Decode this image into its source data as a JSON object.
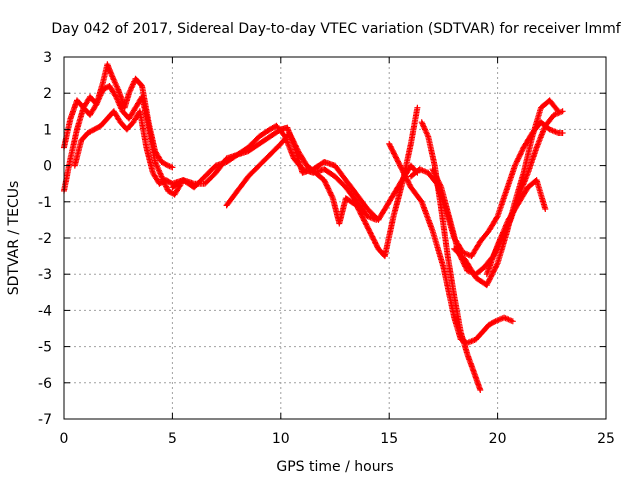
{
  "chart_data": {
    "type": "scatter",
    "title": "Day 042 of 2017, Sidereal Day-to-day VTEC variation (SDTVAR) for receiver lmmf",
    "xlabel": "GPS time / hours",
    "ylabel": "SDTVAR / TECUs",
    "xlim": [
      0,
      25
    ],
    "ylim": [
      -7,
      3
    ],
    "xticks": [
      0,
      5,
      10,
      15,
      20,
      25
    ],
    "yticks": [
      -7,
      -6,
      -5,
      -4,
      -3,
      -2,
      -1,
      0,
      1,
      2,
      3
    ],
    "grid": true,
    "legend": "none",
    "marker": "+",
    "color": "#ff0000",
    "series": [
      {
        "x": [
          0.0,
          0.3,
          0.6,
          0.9,
          1.2,
          1.5,
          1.8,
          2.0,
          2.2,
          2.5,
          2.8,
          3.0,
          3.3,
          3.6,
          3.9,
          4.2,
          4.5,
          4.8,
          5.0
        ],
        "y": [
          0.5,
          1.3,
          1.8,
          1.6,
          1.4,
          1.7,
          2.3,
          2.8,
          2.5,
          2.1,
          1.6,
          2.0,
          2.4,
          2.2,
          1.2,
          0.4,
          0.1,
          0.0,
          -0.05
        ]
      },
      {
        "x": [
          0.0,
          0.3,
          0.6,
          0.9,
          1.2,
          1.5,
          1.8,
          2.1,
          2.4,
          2.7,
          3.0,
          3.3,
          3.6,
          3.9,
          4.2,
          4.5,
          4.8,
          5.1,
          5.4
        ],
        "y": [
          -0.7,
          0.2,
          1.0,
          1.6,
          1.9,
          1.7,
          2.1,
          2.2,
          1.9,
          1.5,
          1.3,
          1.6,
          1.9,
          1.1,
          0.1,
          -0.3,
          -0.7,
          -0.8,
          -0.5
        ]
      },
      {
        "x": [
          0.5,
          0.8,
          1.1,
          1.4,
          1.7,
          2.0,
          2.3,
          2.6,
          2.9,
          3.2,
          3.5,
          3.8,
          4.1,
          4.4,
          4.7,
          5.0,
          5.5,
          6.0,
          6.5,
          7.0,
          7.5,
          8.0,
          8.5,
          9.0,
          9.5,
          9.8,
          10.2,
          10.6,
          11.0,
          11.5,
          12.0,
          12.5,
          13.0,
          13.5,
          14.0,
          14.4
        ],
        "y": [
          0.0,
          0.7,
          0.9,
          1.0,
          1.1,
          1.3,
          1.5,
          1.2,
          1.0,
          1.2,
          1.5,
          0.5,
          -0.2,
          -0.5,
          -0.4,
          -0.5,
          -0.4,
          -0.6,
          -0.3,
          0.0,
          0.1,
          0.3,
          0.5,
          0.8,
          1.0,
          1.1,
          0.8,
          0.2,
          -0.1,
          -0.2,
          -0.1,
          -0.3,
          -0.6,
          -1.0,
          -1.4,
          -1.5
        ]
      },
      {
        "x": [
          5.0,
          5.5,
          6.0,
          6.5,
          7.0,
          7.5,
          8.0,
          8.5,
          9.0,
          9.5,
          10.0,
          10.3,
          10.7,
          11.0,
          11.5,
          12.0,
          12.5,
          13.0,
          13.5,
          14.0,
          14.5,
          15.0,
          15.5,
          16.0,
          16.3
        ],
        "y": [
          -0.6,
          -0.4,
          -0.5,
          -0.5,
          -0.2,
          0.2,
          0.3,
          0.4,
          0.6,
          0.8,
          1.0,
          1.05,
          0.4,
          -0.2,
          -0.1,
          0.1,
          0.0,
          -0.4,
          -0.8,
          -1.2,
          -1.5,
          -1.0,
          -0.5,
          0.0,
          -0.2
        ]
      },
      {
        "x": [
          7.5,
          8.0,
          8.5,
          9.0,
          9.5,
          10.0,
          10.4,
          10.8,
          11.2,
          11.6,
          12.0,
          12.4,
          12.7,
          13.0,
          13.5,
          14.0,
          14.5,
          14.8,
          15.2,
          15.6,
          16.0,
          16.3
        ],
        "y": [
          -1.1,
          -0.7,
          -0.3,
          0.0,
          0.3,
          0.6,
          0.9,
          0.4,
          0.0,
          -0.2,
          -0.4,
          -0.9,
          -1.6,
          -0.9,
          -1.1,
          -1.7,
          -2.3,
          -2.5,
          -1.4,
          -0.5,
          0.6,
          1.6
        ]
      },
      {
        "x": [
          15.0,
          15.5,
          16.0,
          16.5,
          17.0,
          17.5,
          18.0,
          18.3,
          18.6,
          19.0,
          19.3,
          19.6,
          19.9,
          20.3,
          20.7
        ],
        "y": [
          0.6,
          0.0,
          -0.6,
          -1.0,
          -1.8,
          -2.8,
          -4.2,
          -4.8,
          -4.9,
          -4.8,
          -4.6,
          -4.4,
          -4.3,
          -4.2,
          -4.3
        ]
      },
      {
        "x": [
          16.5,
          16.8,
          17.1,
          17.4,
          17.7,
          18.0,
          18.3,
          18.6,
          18.9,
          19.2
        ],
        "y": [
          1.2,
          0.8,
          0.0,
          -1.2,
          -2.5,
          -3.6,
          -4.6,
          -5.2,
          -5.7,
          -6.2
        ]
      },
      {
        "x": [
          16.0,
          16.4,
          16.8,
          17.2,
          17.6,
          18.0,
          18.4,
          18.8,
          19.2,
          19.6,
          20.0,
          20.4,
          20.8,
          21.2,
          21.6,
          22.0,
          22.4,
          22.8,
          23.0
        ],
        "y": [
          -0.3,
          -0.1,
          -0.2,
          -0.5,
          -1.2,
          -2.0,
          -2.4,
          -2.5,
          -2.1,
          -1.8,
          -1.4,
          -0.7,
          0.0,
          0.5,
          0.9,
          1.2,
          1.0,
          0.9,
          0.9
        ]
      },
      {
        "x": [
          17.0,
          17.4,
          17.8,
          18.2,
          18.6,
          19.0,
          19.4,
          19.8,
          20.2,
          20.6,
          21.0,
          21.4,
          21.8,
          22.2,
          22.6,
          23.0
        ],
        "y": [
          -0.1,
          -0.6,
          -1.5,
          -2.4,
          -2.9,
          -3.0,
          -2.8,
          -2.5,
          -2.0,
          -1.5,
          -0.8,
          -0.2,
          0.5,
          1.1,
          1.4,
          1.5
        ]
      },
      {
        "x": [
          18.0,
          18.5,
          19.0,
          19.5,
          20.0,
          20.4,
          20.8,
          21.2,
          21.6,
          22.0,
          22.4,
          22.8
        ],
        "y": [
          -2.3,
          -2.6,
          -3.1,
          -3.3,
          -2.7,
          -1.9,
          -1.0,
          -0.2,
          0.8,
          1.6,
          1.8,
          1.5
        ]
      },
      {
        "x": [
          19.5,
          20.0,
          20.5,
          21.0,
          21.4,
          21.8,
          22.2
        ],
        "y": [
          -3.0,
          -2.2,
          -1.5,
          -1.0,
          -0.6,
          -0.4,
          -1.2
        ]
      }
    ]
  }
}
